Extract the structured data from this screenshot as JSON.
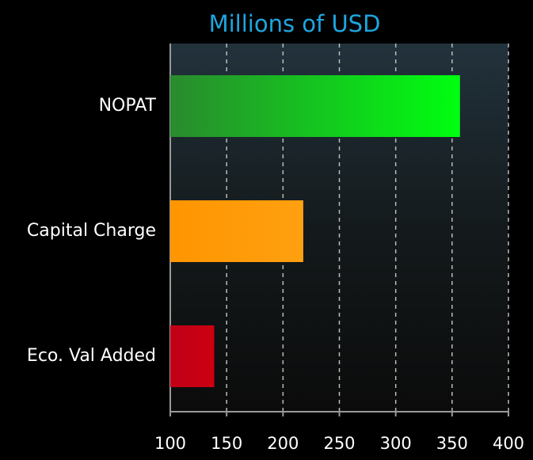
{
  "chart_data": {
    "type": "bar",
    "orientation": "horizontal",
    "title": "Millions of USD",
    "categories": [
      "NOPAT",
      "Capital Charge",
      "Eco. Val Added"
    ],
    "values": [
      357,
      218,
      139
    ],
    "colors": [
      "#22cc22",
      "#ff9900",
      "#cc0011"
    ],
    "xlim": [
      100,
      400
    ],
    "xticks": [
      100,
      150,
      200,
      250,
      300,
      350,
      400
    ],
    "grid": true
  }
}
